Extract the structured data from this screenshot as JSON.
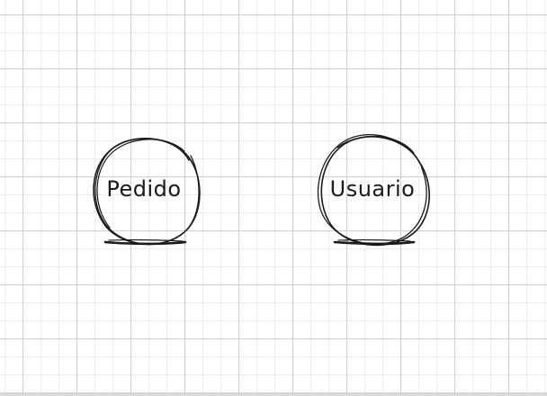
{
  "diagram": {
    "nodes": [
      {
        "id": "pedido",
        "label": "Pedido",
        "shape": "hand-drawn-circle"
      },
      {
        "id": "usuario",
        "label": "Usuario",
        "shape": "hand-drawn-circle"
      }
    ]
  },
  "colors": {
    "ink": "#1a1a1a",
    "grid_major": "#cfcfcf",
    "grid_minor": "#ececec",
    "background": "#ffffff"
  }
}
